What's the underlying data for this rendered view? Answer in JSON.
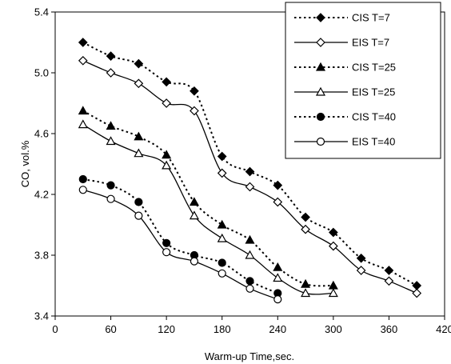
{
  "chart_data": {
    "type": "line",
    "title": "",
    "xlabel": "Warm-up Time,sec.",
    "ylabel": "CO, vol.%",
    "xlim": [
      0,
      420
    ],
    "ylim": [
      3.4,
      5.4
    ],
    "xticks": [
      0,
      60,
      120,
      180,
      240,
      300,
      360,
      420
    ],
    "yticks": [
      3.4,
      3.8,
      4.2,
      4.6,
      5.0,
      5.4
    ],
    "ytick_labels": [
      "3.4",
      "3.8",
      "4.2",
      "4.6",
      "5.0",
      "5.4"
    ],
    "grid": false,
    "legend_position": "top-right",
    "series": [
      {
        "name": "CIS T=7",
        "marker": "diamond",
        "filled": true,
        "dash": "dotted",
        "x": [
          30,
          60,
          90,
          120,
          150,
          180,
          210,
          240,
          270,
          300,
          330,
          360,
          390
        ],
        "y": [
          5.2,
          5.11,
          5.06,
          4.94,
          4.88,
          4.45,
          4.35,
          4.26,
          4.05,
          3.95,
          3.78,
          3.7,
          3.6
        ]
      },
      {
        "name": "EIS T=7",
        "marker": "diamond",
        "filled": false,
        "dash": "solid",
        "x": [
          30,
          60,
          90,
          120,
          150,
          180,
          210,
          240,
          270,
          300,
          330,
          360,
          390
        ],
        "y": [
          5.08,
          5.0,
          4.93,
          4.8,
          4.75,
          4.34,
          4.25,
          4.15,
          3.97,
          3.86,
          3.7,
          3.63,
          3.55
        ]
      },
      {
        "name": "CIS T=25",
        "marker": "triangle",
        "filled": true,
        "dash": "dotted",
        "x": [
          30,
          60,
          90,
          120,
          150,
          180,
          210,
          240,
          270,
          300
        ],
        "y": [
          4.75,
          4.65,
          4.58,
          4.46,
          4.15,
          4.0,
          3.9,
          3.72,
          3.61,
          3.6
        ]
      },
      {
        "name": "EIS T=25",
        "marker": "triangle",
        "filled": false,
        "dash": "solid",
        "x": [
          30,
          60,
          90,
          120,
          150,
          180,
          210,
          240,
          270,
          300
        ],
        "y": [
          4.66,
          4.55,
          4.47,
          4.39,
          4.06,
          3.91,
          3.8,
          3.65,
          3.55,
          3.55
        ]
      },
      {
        "name": "CIS T=40",
        "marker": "circle",
        "filled": true,
        "dash": "dotted",
        "x": [
          30,
          60,
          90,
          120,
          150,
          180,
          210,
          240
        ],
        "y": [
          4.3,
          4.26,
          4.15,
          3.88,
          3.8,
          3.75,
          3.63,
          3.55
        ]
      },
      {
        "name": "EIS T=40",
        "marker": "circle",
        "filled": false,
        "dash": "solid",
        "x": [
          30,
          60,
          90,
          120,
          150,
          180,
          210,
          240
        ],
        "y": [
          4.23,
          4.17,
          4.06,
          3.82,
          3.76,
          3.68,
          3.58,
          3.51
        ]
      }
    ]
  }
}
